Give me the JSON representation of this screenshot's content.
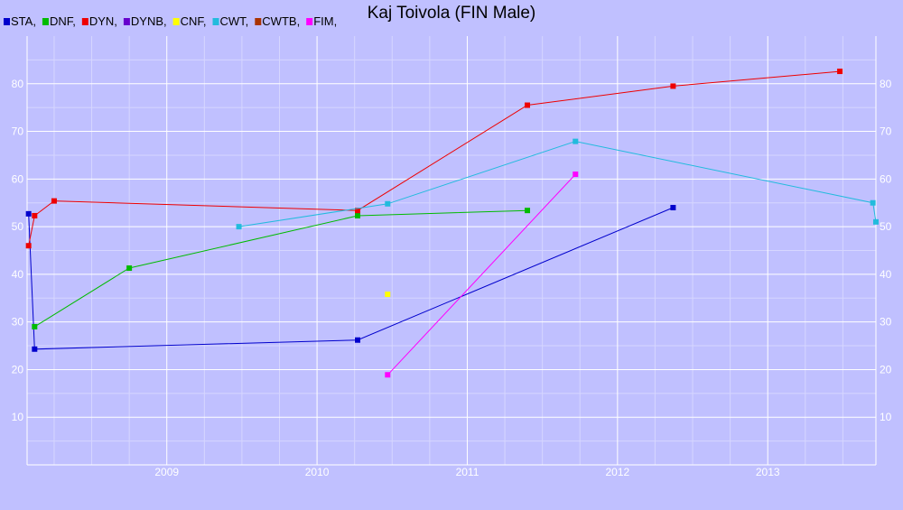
{
  "chart_data": {
    "type": "line",
    "title": "Kaj Toivola (FIN Male)",
    "xlabel": "",
    "ylabel": "",
    "x_domain": [
      2008.07,
      2013.72
    ],
    "xlim": [
      2008.07,
      2013.72
    ],
    "ylim": [
      0,
      90
    ],
    "x_ticks": [
      2009,
      2010,
      2011,
      2012,
      2013
    ],
    "y_ticks": [
      10,
      20,
      30,
      40,
      50,
      60,
      70,
      80
    ],
    "grid": true,
    "legend_position": "top-left",
    "legend": [
      {
        "label": "STA,",
        "color": "#0000cc"
      },
      {
        "label": "DNF,",
        "color": "#00bb00"
      },
      {
        "label": "DYN,",
        "color": "#ee0000"
      },
      {
        "label": "DYNB,",
        "color": "#6600cc"
      },
      {
        "label": "CNF,",
        "color": "#ffff00"
      },
      {
        "label": "CWT,",
        "color": "#22bbdd"
      },
      {
        "label": "CWTB,",
        "color": "#aa3300"
      },
      {
        "label": "FIM,",
        "color": "#ff00ff"
      }
    ],
    "series": [
      {
        "name": "STA",
        "color": "#0000cc",
        "points": [
          [
            2008.08,
            52.7
          ],
          [
            2008.12,
            24.3
          ],
          [
            2010.27,
            26.2
          ],
          [
            2012.37,
            54.0
          ]
        ]
      },
      {
        "name": "DNF",
        "color": "#00bb00",
        "points": [
          [
            2008.12,
            29.0
          ],
          [
            2008.75,
            41.3
          ],
          [
            2010.27,
            52.3
          ],
          [
            2011.4,
            53.4
          ]
        ]
      },
      {
        "name": "DYN",
        "color": "#ee0000",
        "points": [
          [
            2008.08,
            46.0
          ],
          [
            2008.12,
            52.3
          ],
          [
            2008.25,
            55.4
          ],
          [
            2010.27,
            53.4
          ],
          [
            2011.4,
            75.5
          ],
          [
            2012.37,
            79.5
          ],
          [
            2013.48,
            82.6
          ]
        ]
      },
      {
        "name": "DYNB",
        "color": "#6600cc",
        "points": []
      },
      {
        "name": "CNF",
        "color": "#ffff00",
        "points": [
          [
            2010.47,
            35.8
          ]
        ]
      },
      {
        "name": "CWT",
        "color": "#22bbdd",
        "points": [
          [
            2009.48,
            50.0
          ],
          [
            2010.47,
            54.8
          ],
          [
            2011.72,
            67.9
          ],
          [
            2013.7,
            55.0
          ],
          [
            2013.72,
            51.0
          ]
        ]
      },
      {
        "name": "CWTB",
        "color": "#aa3300",
        "points": []
      },
      {
        "name": "FIM",
        "color": "#ff00ff",
        "points": [
          [
            2010.47,
            18.9
          ],
          [
            2011.72,
            61.0
          ]
        ]
      }
    ]
  }
}
